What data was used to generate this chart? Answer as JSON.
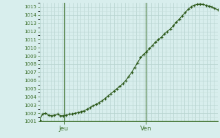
{
  "background_color": "#d8eeed",
  "plot_bg_color": "#d8eeed",
  "grid_major_color": "#b8d4d0",
  "grid_minor_color": "#c8e0dc",
  "line_color": "#2d5a1b",
  "marker_color": "#2d5a1b",
  "vline_color": "#3a6e28",
  "axis_color": "#3a6e28",
  "tick_color": "#3a6e28",
  "label_color": "#3a6e28",
  "ylim": [
    1001,
    1015.5
  ],
  "yticks": [
    1001,
    1002,
    1003,
    1004,
    1005,
    1006,
    1007,
    1008,
    1009,
    1010,
    1011,
    1012,
    1013,
    1014,
    1015
  ],
  "day_labels": [
    "Jeu",
    "Ven"
  ],
  "day_positions": [
    0.135,
    0.595
  ],
  "figsize": [
    3.2,
    2.0
  ],
  "dpi": 100,
  "y_values": [
    1001.2,
    1001.9,
    1002.0,
    1001.8,
    1001.7,
    1001.8,
    1001.9,
    1001.7,
    1001.7,
    1001.8,
    1001.9,
    1001.9,
    1002.0,
    1002.1,
    1002.2,
    1002.3,
    1002.5,
    1002.7,
    1002.9,
    1003.1,
    1003.3,
    1003.5,
    1003.8,
    1004.1,
    1004.4,
    1004.7,
    1005.0,
    1005.3,
    1005.6,
    1006.0,
    1006.5,
    1007.0,
    1007.6,
    1008.2,
    1008.8,
    1009.2,
    1009.5,
    1009.9,
    1010.3,
    1010.7,
    1011.0,
    1011.3,
    1011.7,
    1012.0,
    1012.3,
    1012.7,
    1013.1,
    1013.5,
    1013.9,
    1014.3,
    1014.7,
    1015.0,
    1015.2,
    1015.3,
    1015.35,
    1015.3,
    1015.2,
    1015.1,
    1015.0,
    1014.8,
    1014.65
  ]
}
